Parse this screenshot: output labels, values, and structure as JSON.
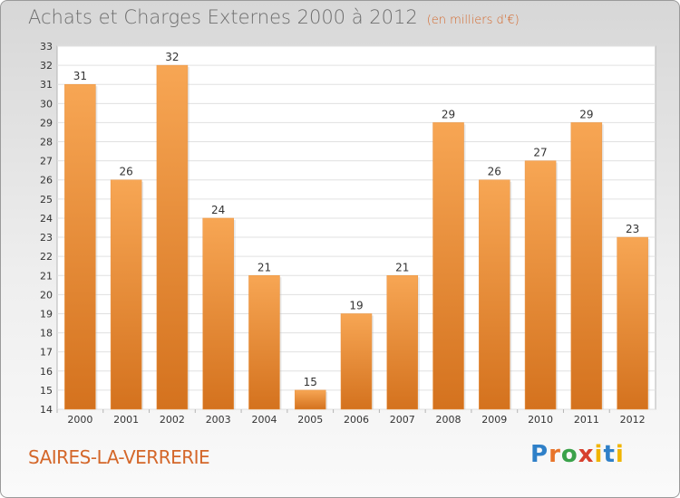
{
  "header": {
    "title": "Achats et Charges Externes 2000 à 2012",
    "subtitle": "(en milliers d'€)"
  },
  "footer": {
    "commune": "SAIRES-LA-VERRERIE",
    "brand": "Proxiti"
  },
  "colors": {
    "bar_top": "#f7a654",
    "bar_bottom": "#d4721e",
    "axis_text": "#333333",
    "accent": "#d4672a"
  },
  "chart_data": {
    "type": "bar",
    "title": "Achats et Charges Externes 2000 à 2012",
    "subtitle": "(en milliers d'€)",
    "categories": [
      "2000",
      "2001",
      "2002",
      "2003",
      "2004",
      "2005",
      "2006",
      "2007",
      "2008",
      "2009",
      "2010",
      "2011",
      "2012"
    ],
    "values": [
      31,
      26,
      32,
      24,
      21,
      15,
      19,
      21,
      29,
      26,
      27,
      29,
      23
    ],
    "ylim": [
      14,
      33
    ],
    "yticks": [
      14,
      15,
      16,
      17,
      18,
      19,
      20,
      21,
      22,
      23,
      24,
      25,
      26,
      27,
      28,
      29,
      30,
      31,
      32,
      33
    ],
    "grid": true,
    "data_labels": true
  }
}
